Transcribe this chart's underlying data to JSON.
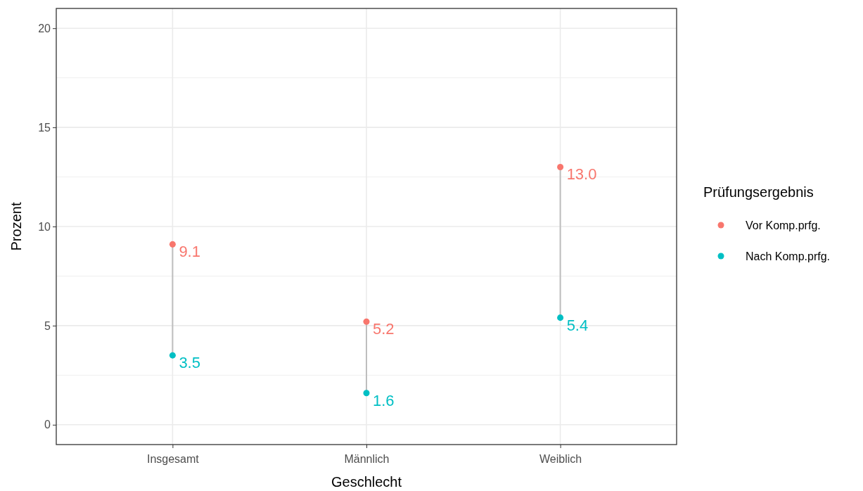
{
  "chart_data": {
    "type": "scatter",
    "xlabel": "Geschlecht",
    "ylabel": "Prozent",
    "legend_title": "Prüfungsergebnis",
    "categories": [
      "Insgesamt",
      "Männlich",
      "Weiblich"
    ],
    "series": [
      {
        "name": "Vor Komp.prfg.",
        "color": "#f8766d",
        "values": [
          9.1,
          5.2,
          13.0
        ],
        "value_labels": [
          "9.1",
          "5.2",
          "13.0"
        ]
      },
      {
        "name": "Nach Komp.prfg.",
        "color": "#00bfc4",
        "values": [
          3.5,
          1.6,
          5.4
        ],
        "value_labels": [
          "3.5",
          "1.6",
          "5.4"
        ]
      }
    ],
    "ylim": [
      -1,
      21
    ],
    "yticks": [
      0,
      5,
      10,
      15,
      20
    ],
    "grid": true,
    "legend": "right",
    "marker": "circle"
  }
}
